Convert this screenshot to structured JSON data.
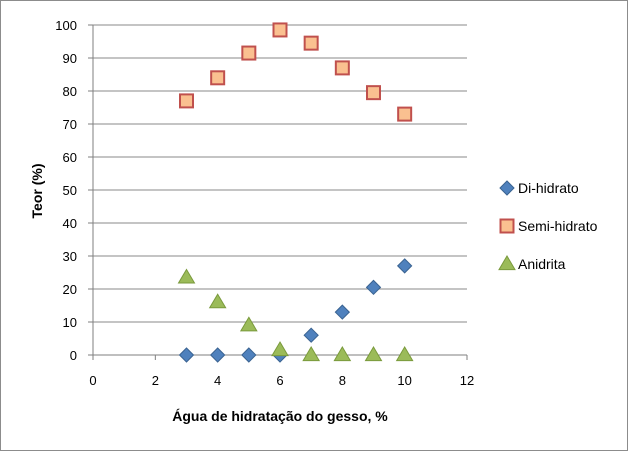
{
  "chart_data": {
    "type": "scatter",
    "title": "",
    "xlabel": "Água de hidratação do gesso, %",
    "ylabel": "Teor (%)",
    "xlim": [
      0,
      12
    ],
    "ylim": [
      0,
      100
    ],
    "xticks": [
      0,
      2,
      4,
      6,
      8,
      10,
      12
    ],
    "yticks": [
      0,
      10,
      20,
      30,
      40,
      50,
      60,
      70,
      80,
      90,
      100
    ],
    "grid": "horizontal",
    "legend_position": "right",
    "series": [
      {
        "name": "Di-hidrato",
        "marker": "diamond",
        "color": "#4f81bd",
        "stroke": "#3a6391",
        "x": [
          3,
          4,
          5,
          6,
          7,
          8,
          9,
          10
        ],
        "y": [
          0,
          0,
          0,
          0,
          6,
          13,
          20.5,
          27
        ]
      },
      {
        "name": "Semi-hidrato",
        "marker": "square",
        "color": "#fac090",
        "stroke": "#c0504d",
        "x": [
          3,
          4,
          5,
          6,
          7,
          8,
          9,
          10
        ],
        "y": [
          77,
          84,
          91.5,
          98.5,
          94.5,
          87,
          79.5,
          73
        ]
      },
      {
        "name": "Anidrita",
        "marker": "triangle",
        "color": "#9bbb59",
        "stroke": "#7a9a3c",
        "x": [
          3,
          4,
          5,
          6,
          7,
          8,
          9,
          10
        ],
        "y": [
          23.5,
          16,
          9,
          1.5,
          0,
          0,
          0,
          0
        ]
      }
    ]
  }
}
